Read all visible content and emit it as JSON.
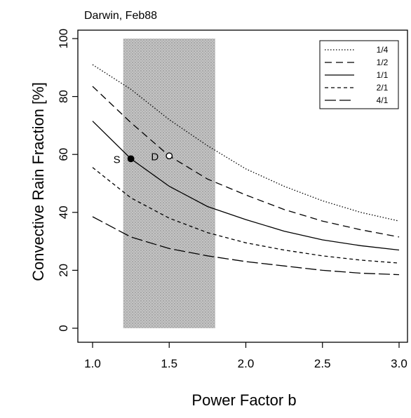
{
  "chart_data": {
    "type": "line",
    "title": "Darwin, Feb88",
    "xlabel": "Power Factor b",
    "ylabel": "Convective Rain Fraction [%]",
    "xlim": [
      1.0,
      3.0
    ],
    "ylim": [
      0,
      100
    ],
    "x_ticks": [
      "1.0",
      "1.5",
      "2.0",
      "2.5",
      "3.0"
    ],
    "y_ticks": [
      "0",
      "20",
      "40",
      "60",
      "80",
      "100"
    ],
    "grid": false,
    "legend_position": "top-right",
    "shaded_band": {
      "x_from": 1.2,
      "x_to": 1.8
    },
    "x": [
      1.0,
      1.25,
      1.5,
      1.75,
      2.0,
      2.25,
      2.5,
      2.75,
      3.0
    ],
    "series": [
      {
        "name": "1/4",
        "style": "dotted",
        "values": [
          91,
          82.5,
          72,
          63,
          55,
          49,
          44,
          40,
          37
        ]
      },
      {
        "name": "1/2",
        "style": "dashed",
        "values": [
          83.5,
          71,
          59.5,
          51.5,
          46,
          41,
          37,
          34,
          31.5
        ]
      },
      {
        "name": "1/1",
        "style": "solid",
        "values": [
          71.5,
          58.5,
          49,
          42,
          37.5,
          33.5,
          30.5,
          28.5,
          27
        ]
      },
      {
        "name": "2/1",
        "style": "short-dashed",
        "values": [
          55.5,
          45,
          38,
          33,
          29.5,
          27,
          25,
          23.5,
          22.5
        ]
      },
      {
        "name": "4/1",
        "style": "long-dashed",
        "values": [
          38.5,
          31.5,
          27.5,
          25,
          23,
          21.5,
          20,
          19,
          18.5
        ]
      }
    ],
    "annotations": [
      {
        "label": "S",
        "x": 1.25,
        "y": 58.5,
        "marker": "filled-circle"
      },
      {
        "label": "D",
        "x": 1.5,
        "y": 59.5,
        "marker": "open-circle"
      }
    ]
  }
}
